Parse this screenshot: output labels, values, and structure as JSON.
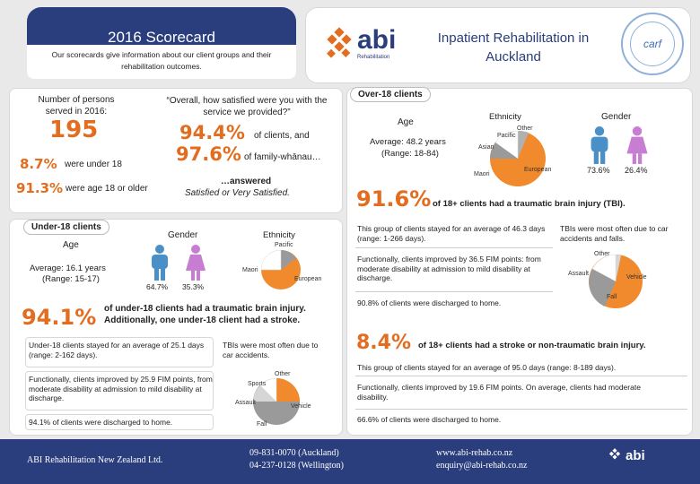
{
  "header": {
    "title": "2016 Scorecard",
    "subtitle": "Our scorecards give information about our client groups and their rehabilitation outcomes.",
    "logo_text": "abi",
    "logo_sub": "Rehabilitation",
    "right_title": "Inpatient Rehabilitation in Auckland",
    "carf_text": "carf"
  },
  "left_top": {
    "persons_label": "Number of persons served in 2016:",
    "persons_value": "195",
    "under18_pct": "8.7%",
    "under18_text": "were under 18",
    "over18_pct": "91.3%",
    "over18_text": "were age 18 or older",
    "satisfaction_q": "“Overall, how satisfied were you with the service we provided?”",
    "clients_pct": "94.4%",
    "clients_text": "of clients, and",
    "family_pct": "97.6%",
    "family_text": "of family-whānau…",
    "answered": "…answered",
    "satisfied": "Satisfied or Very Satisfied."
  },
  "under18": {
    "tab": "Under-18 clients",
    "age_label": "Age",
    "age_avg": "Average: 16.1 years",
    "age_range": "(Range: 15-17)",
    "gender_label": "Gender",
    "gender_m": "64.7%",
    "gender_f": "35.3%",
    "ethnicity_label": "Ethnicity",
    "eth_pacific": "Pacific",
    "eth_maori": "Maori",
    "eth_european": "European",
    "tbi_pct": "94.1%",
    "tbi_text": "of under-18 clients had a traumatic brain injury.",
    "tbi_text2": "Additionally, one under-18 client had a stroke.",
    "stay": "Under-18 clients stayed for an average of 25.1 days (range: 2-162 days).",
    "fim": "Functionally, clients improved by 25.9 FIM points, from moderate disability at admission to mild disability at discharge.",
    "home": "94.1% of clients were discharged to home.",
    "tbi_cause": "TBIs were most often due to car accidents.",
    "cause_other": "Other",
    "cause_sports": "Sports",
    "cause_assault": "Assault",
    "cause_vehicle": "Vehicle",
    "cause_fall": "Fall"
  },
  "over18": {
    "tab": "Over-18 clients",
    "age_label": "Age",
    "age_avg": "Average: 48.2 years",
    "age_range": "(Range: 18-84)",
    "ethnicity_label": "Ethnicity",
    "eth_other": "Other",
    "eth_pacific": "Pacific",
    "eth_asian": "Asian",
    "eth_maori": "Maori",
    "eth_european": "European",
    "gender_label": "Gender",
    "gender_m": "73.6%",
    "gender_f": "26.4%",
    "tbi_pct": "91.6%",
    "tbi_text": "of 18+ clients had a traumatic brain injury (TBI).",
    "tbi_stay": "This group of clients stayed for an average of 46.3 days (range: 1-266 days).",
    "tbi_fim": "Functionally, clients improved by 36.5 FIM points: from moderate disability at admission to mild disability at discharge.",
    "tbi_home": "90.8% of clients were discharged to home.",
    "tbi_cause": "TBIs were most often due to car accidents and falls.",
    "cause_other": "Other",
    "cause_assault": "Assault",
    "cause_vehicle": "Vehicle",
    "cause_fall": "Fall",
    "stroke_pct": "8.4%",
    "stroke_text": "of 18+ clients had a stroke or non-traumatic brain injury.",
    "stroke_stay": "This group of clients stayed for an average of 95.0 days (range: 8-189 days).",
    "stroke_fim": "Functionally, clients improved by 19.6 FIM points. On average, clients had moderate disability.",
    "stroke_home": "66.6% of clients were discharged to home."
  },
  "footer": {
    "company": "ABI Rehabilitation New Zealand Ltd.",
    "phone1": "09-831-0070 (Auckland)",
    "phone2": "04-237-0128 (Wellington)",
    "web": "www.abi-rehab.co.nz",
    "email": "enquiry@abi-rehab.co.nz",
    "logo_text": "abi"
  },
  "colors": {
    "orange": "#e36c1f",
    "navy": "#2a3d7c",
    "male_blue": "#4a90c8",
    "female_pink": "#c77dd1",
    "pie_orange": "#f08a2c",
    "pie_gray": "#9a9a9a"
  }
}
